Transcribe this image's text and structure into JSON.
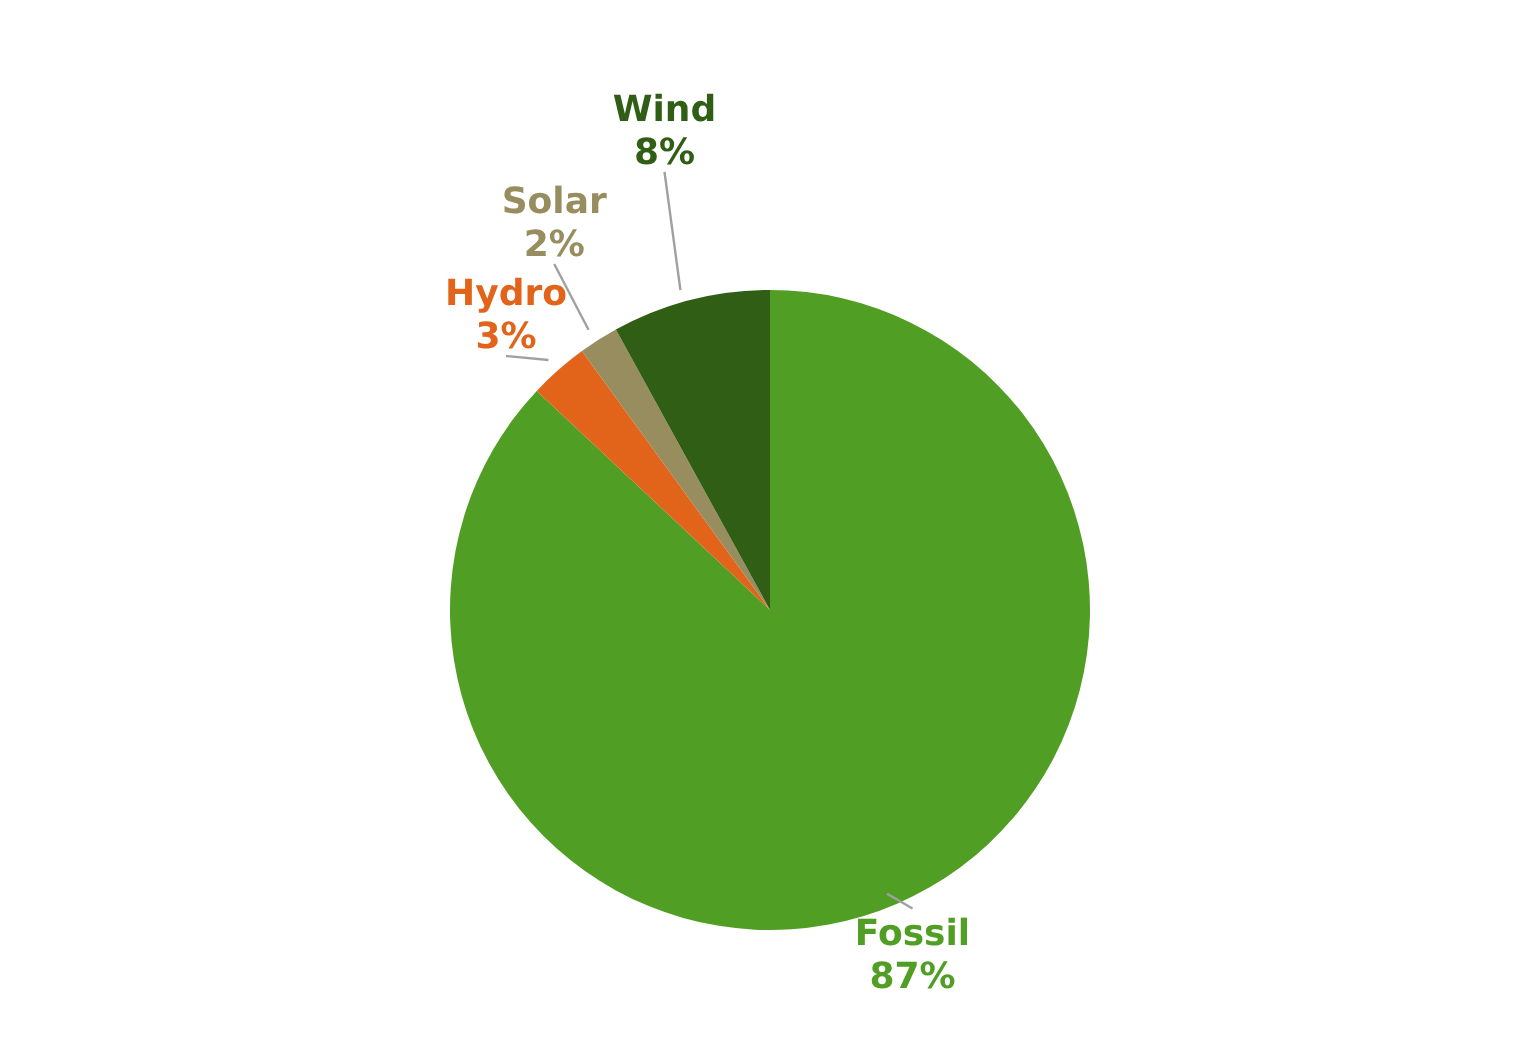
{
  "chart_data": {
    "type": "pie",
    "categories": [
      "Fossil",
      "Hydro",
      "Solar",
      "Wind"
    ],
    "values": [
      87,
      3,
      2,
      8
    ],
    "colors": [
      "#519e24",
      "#e2641a",
      "#978d5f",
      "#2f5e14"
    ],
    "value_labels": [
      "87%",
      "3%",
      "2%",
      "8%"
    ]
  }
}
